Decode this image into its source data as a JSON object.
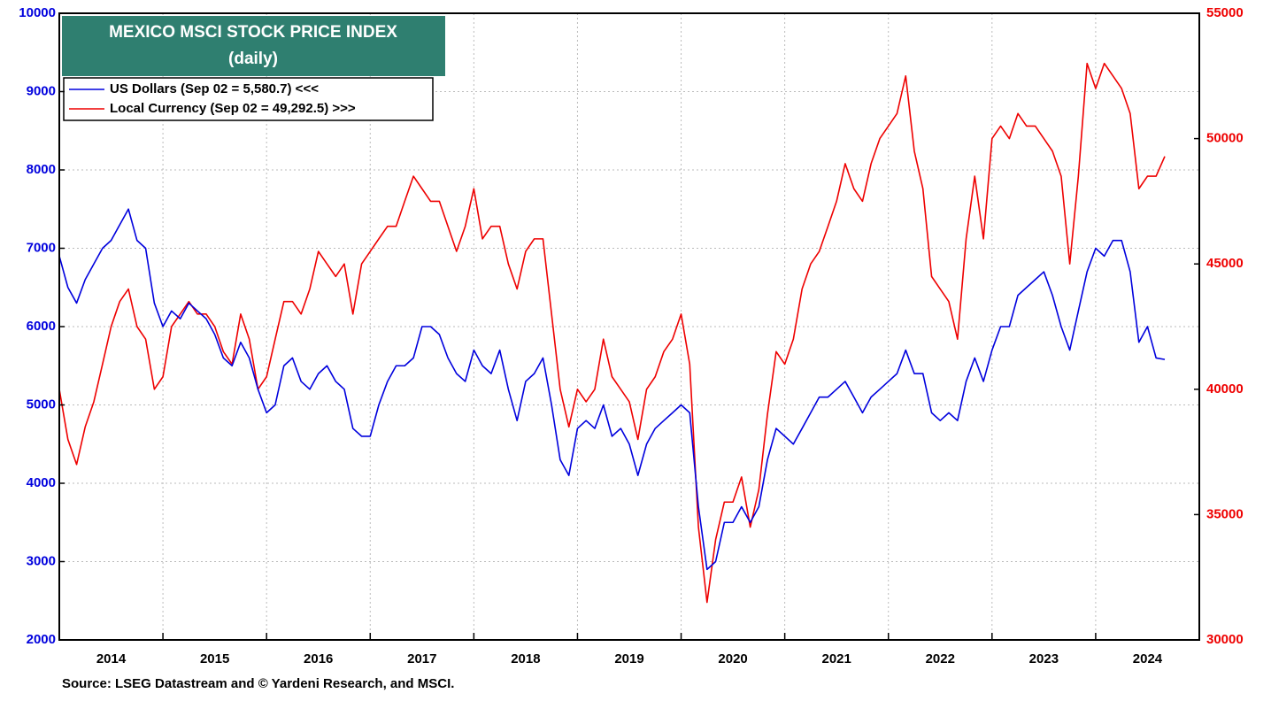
{
  "chart_data": {
    "type": "line",
    "title": "MEXICO MSCI STOCK PRICE INDEX",
    "subtitle": "(daily)",
    "source": "Source: LSEG Datastream and © Yardeni Research, and MSCI.",
    "xlim": [
      2014,
      2025
    ],
    "xticks": [
      {
        "value": 2014.5,
        "label": "2014"
      },
      {
        "value": 2015.5,
        "label": "2015"
      },
      {
        "value": 2016.5,
        "label": "2016"
      },
      {
        "value": 2017.5,
        "label": "2017"
      },
      {
        "value": 2018.5,
        "label": "2018"
      },
      {
        "value": 2019.5,
        "label": "2019"
      },
      {
        "value": 2020.5,
        "label": "2020"
      },
      {
        "value": 2021.5,
        "label": "2021"
      },
      {
        "value": 2022.5,
        "label": "2022"
      },
      {
        "value": 2023.5,
        "label": "2023"
      },
      {
        "value": 2024.5,
        "label": "2024"
      }
    ],
    "xgrid": [
      2015,
      2016,
      2017,
      2018,
      2019,
      2020,
      2021,
      2022,
      2023,
      2024
    ],
    "ylim": [
      2000,
      10000
    ],
    "yticks": [
      2000,
      3000,
      4000,
      5000,
      6000,
      7000,
      8000,
      9000,
      10000
    ],
    "y2lim": [
      30000,
      55000
    ],
    "y2ticks": [
      30000,
      35000,
      40000,
      45000,
      50000,
      55000
    ],
    "grid": true,
    "legend": "upper left",
    "x": [
      2014,
      2014.083,
      2014.167,
      2014.25,
      2014.333,
      2014.417,
      2014.5,
      2014.583,
      2014.667,
      2014.75,
      2014.833,
      2014.917,
      2015,
      2015.083,
      2015.167,
      2015.25,
      2015.333,
      2015.417,
      2015.5,
      2015.583,
      2015.667,
      2015.75,
      2015.833,
      2015.917,
      2016,
      2016.083,
      2016.167,
      2016.25,
      2016.333,
      2016.417,
      2016.5,
      2016.583,
      2016.667,
      2016.75,
      2016.833,
      2016.917,
      2017,
      2017.083,
      2017.167,
      2017.25,
      2017.333,
      2017.417,
      2017.5,
      2017.583,
      2017.667,
      2017.75,
      2017.833,
      2017.917,
      2018,
      2018.083,
      2018.167,
      2018.25,
      2018.333,
      2018.417,
      2018.5,
      2018.583,
      2018.667,
      2018.75,
      2018.833,
      2018.917,
      2019,
      2019.083,
      2019.167,
      2019.25,
      2019.333,
      2019.417,
      2019.5,
      2019.583,
      2019.667,
      2019.75,
      2019.833,
      2019.917,
      2020,
      2020.083,
      2020.167,
      2020.25,
      2020.333,
      2020.417,
      2020.5,
      2020.583,
      2020.667,
      2020.75,
      2020.833,
      2020.917,
      2021,
      2021.083,
      2021.167,
      2021.25,
      2021.333,
      2021.417,
      2021.5,
      2021.583,
      2021.667,
      2021.75,
      2021.833,
      2021.917,
      2022,
      2022.083,
      2022.167,
      2022.25,
      2022.333,
      2022.417,
      2022.5,
      2022.583,
      2022.667,
      2022.75,
      2022.833,
      2022.917,
      2023,
      2023.083,
      2023.167,
      2023.25,
      2023.333,
      2023.417,
      2023.5,
      2023.583,
      2023.667,
      2023.75,
      2023.833,
      2023.917,
      2024,
      2024.083,
      2024.167,
      2024.25,
      2024.333,
      2024.417,
      2024.5,
      2024.583,
      2024.667
    ],
    "series": [
      {
        "name": "US Dollars (Sep 02 = 5,580.7) <<<",
        "color": "#0000dd",
        "axis": "y",
        "values": [
          6900,
          6500,
          6300,
          6600,
          6800,
          7000,
          7100,
          7300,
          7500,
          7100,
          7000,
          6300,
          6000,
          6200,
          6100,
          6300,
          6200,
          6100,
          5900,
          5600,
          5500,
          5800,
          5600,
          5200,
          4900,
          5000,
          5500,
          5600,
          5300,
          5200,
          5400,
          5500,
          5300,
          5200,
          4700,
          4600,
          4600,
          5000,
          5300,
          5500,
          5500,
          5600,
          6000,
          6000,
          5900,
          5600,
          5400,
          5300,
          5700,
          5500,
          5400,
          5700,
          5200,
          4800,
          5300,
          5400,
          5600,
          5000,
          4300,
          4100,
          4700,
          4800,
          4700,
          5000,
          4600,
          4700,
          4500,
          4100,
          4500,
          4700,
          4800,
          4900,
          5000,
          4900,
          3700,
          2900,
          3000,
          3500,
          3500,
          3700,
          3500,
          3700,
          4300,
          4700,
          4600,
          4500,
          4700,
          4900,
          5100,
          5100,
          5200,
          5300,
          5100,
          4900,
          5100,
          5200,
          5300,
          5400,
          5700,
          5400,
          5400,
          4900,
          4800,
          4900,
          4800,
          5300,
          5600,
          5300,
          5700,
          6000,
          6000,
          6400,
          6500,
          6600,
          6700,
          6400,
          6000,
          5700,
          6200,
          6700,
          7000,
          6900,
          7100,
          7100,
          6700,
          5800,
          6000,
          5600,
          5580.7
        ]
      },
      {
        "name": "Local Currency (Sep 02 = 49,292.5) >>>",
        "color": "#ee0000",
        "axis": "y2",
        "values": [
          40000,
          38000,
          37000,
          38500,
          39500,
          41000,
          42500,
          43500,
          44000,
          42500,
          42000,
          40000,
          40500,
          42500,
          43000,
          43500,
          43000,
          43000,
          42500,
          41500,
          41000,
          43000,
          42000,
          40000,
          40500,
          42000,
          43500,
          43500,
          43000,
          44000,
          45500,
          45000,
          44500,
          45000,
          43000,
          45000,
          45500,
          46000,
          46500,
          46500,
          47500,
          48500,
          48000,
          47500,
          47500,
          46500,
          45500,
          46500,
          48000,
          46000,
          46500,
          46500,
          45000,
          44000,
          45500,
          46000,
          46000,
          43000,
          40000,
          38500,
          40000,
          39500,
          40000,
          42000,
          40500,
          40000,
          39500,
          38000,
          40000,
          40500,
          41500,
          42000,
          43000,
          41000,
          34500,
          31500,
          34000,
          35500,
          35500,
          36500,
          34500,
          36000,
          39000,
          41500,
          41000,
          42000,
          44000,
          45000,
          45500,
          46500,
          47500,
          49000,
          48000,
          47500,
          49000,
          50000,
          50500,
          51000,
          52500,
          49500,
          48000,
          44500,
          44000,
          43500,
          42000,
          46000,
          48500,
          46000,
          50000,
          50500,
          50000,
          51000,
          50500,
          50500,
          50000,
          49500,
          48500,
          45000,
          48500,
          53000,
          52000,
          53000,
          52500,
          52000,
          51000,
          48000,
          48500,
          48500,
          49292.5
        ]
      }
    ]
  }
}
